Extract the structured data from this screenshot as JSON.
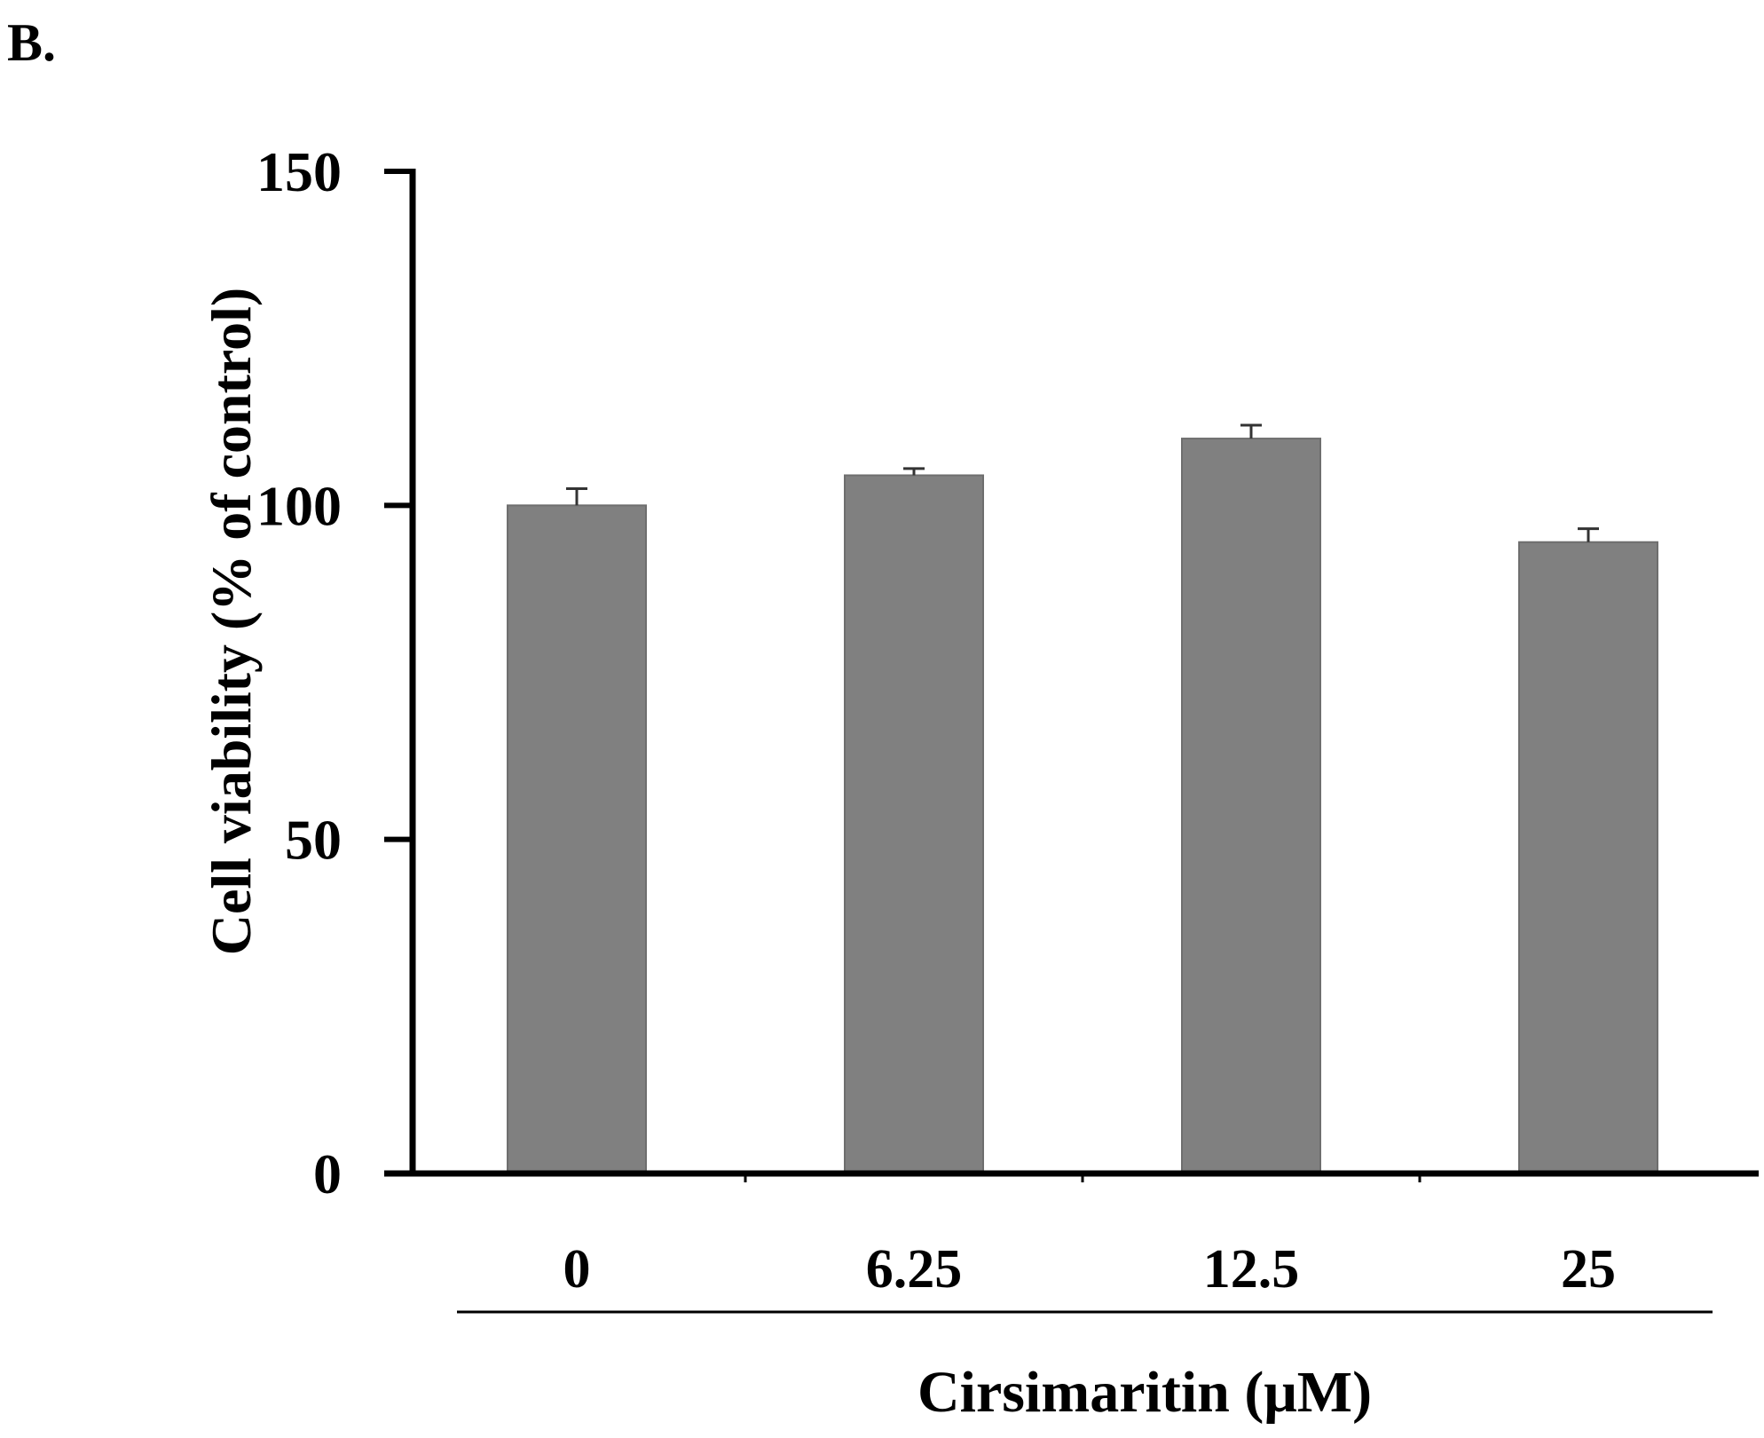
{
  "panel_label": "B.",
  "chart_data": {
    "type": "bar",
    "title": "",
    "categories": [
      "0",
      "6.25",
      "12.5",
      "25"
    ],
    "values": [
      100,
      104.5,
      110,
      94.5
    ],
    "errors": [
      2.5,
      1,
      2,
      2
    ],
    "xlabel": "Cirsimaritin (μM)",
    "ylabel": "Cell viability (% of control)",
    "ylim": [
      0,
      150
    ],
    "yticks": [
      0,
      50,
      100,
      150
    ],
    "grid": false,
    "bar_color": "#808080"
  }
}
